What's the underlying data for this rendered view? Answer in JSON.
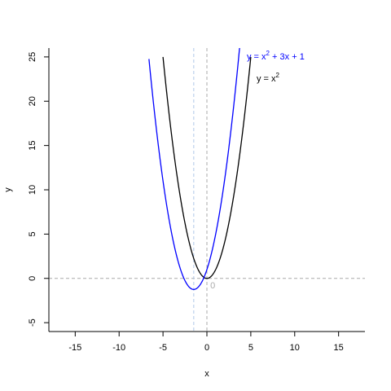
{
  "chart_data": {
    "type": "line",
    "xlabel": "x",
    "ylabel": "y",
    "xlim": [
      -18,
      18
    ],
    "ylim": [
      -6,
      26
    ],
    "x_ticks": [
      -15,
      -10,
      -5,
      0,
      5,
      10,
      15
    ],
    "y_ticks": [
      -5,
      0,
      5,
      10,
      15,
      20,
      25
    ],
    "series": [
      {
        "name_parts": {
          "pre": "y = x",
          "exp": "2",
          "post": ""
        },
        "color": "#000000",
        "x_range": [
          -5,
          5
        ],
        "coefficients": [
          1,
          0,
          0
        ]
      },
      {
        "name_parts": {
          "pre": "y = x",
          "exp": "2",
          "post": " + 3x + 1"
        },
        "color": "#0000ff",
        "x_range": [
          -6.6,
          4.7
        ],
        "coefficients": [
          1,
          3,
          1
        ]
      }
    ],
    "reference_lines": [
      {
        "orientation": "horizontal",
        "value": 0,
        "color": "#aaaaaa"
      },
      {
        "orientation": "vertical",
        "value": 0,
        "color": "#aaaaaa"
      },
      {
        "orientation": "vertical",
        "value": -1.5,
        "color": "#aec7e8"
      }
    ],
    "annotations": [
      {
        "text": "0",
        "x": 0.1,
        "y": -0.4,
        "color": "#aaaaaa"
      }
    ],
    "grid": false
  }
}
